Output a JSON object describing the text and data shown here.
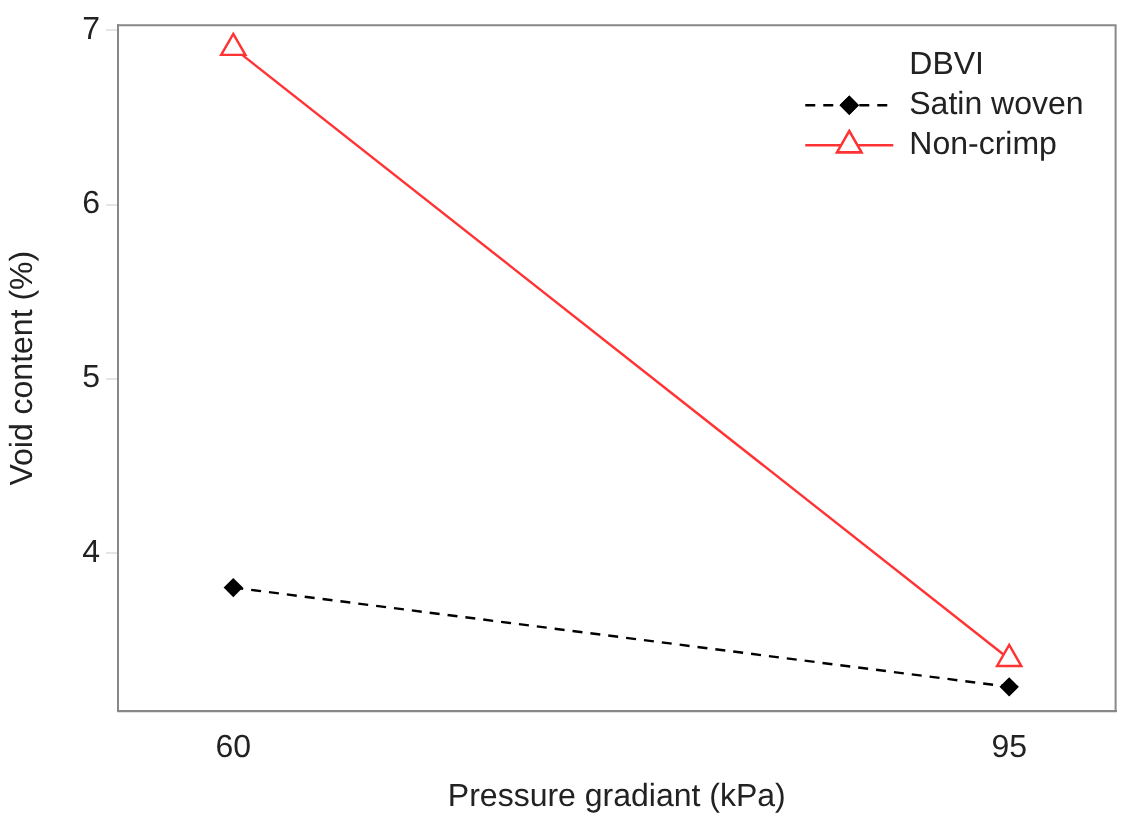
{
  "chart_data": {
    "type": "line",
    "xlabel": "Pressure gradiant (kPa)",
    "ylabel": "Void content (%)",
    "legend_title": "DBVI",
    "legend": "top right",
    "grid": false,
    "x": [
      60,
      95
    ],
    "xlim": [
      54.8,
      99.8
    ],
    "xticks": [
      60,
      95
    ],
    "ylim": [
      3.09,
      7.03
    ],
    "yticks": [
      4,
      5,
      6,
      7
    ],
    "series": [
      {
        "name": "Satin woven",
        "color": "#000000",
        "values": [
          3.8,
          3.23
        ],
        "marker": "diamond",
        "line_style": "dashed"
      },
      {
        "name": "Non-crimp",
        "color": "#ff3333",
        "values": [
          6.9,
          3.39
        ],
        "marker": "triangle",
        "line_style": "solid"
      }
    ]
  }
}
